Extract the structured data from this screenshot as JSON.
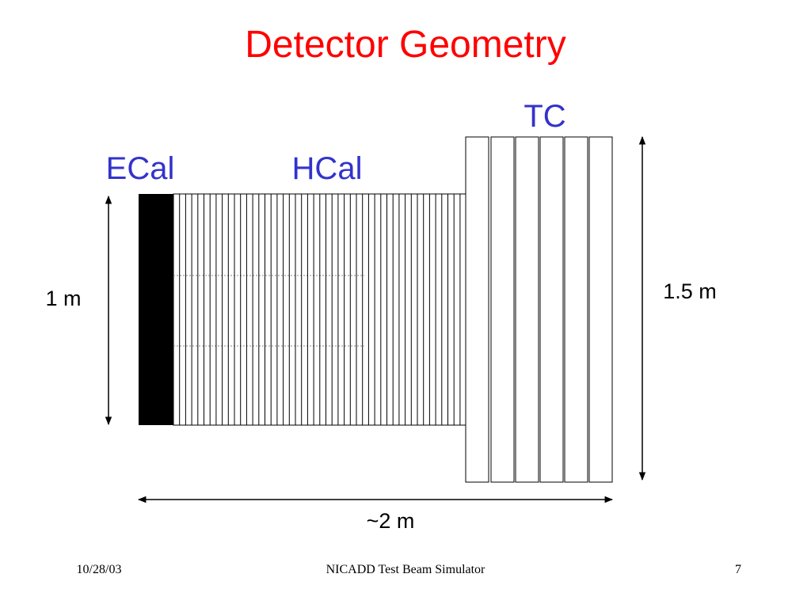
{
  "title": "Detector Geometry",
  "labels": {
    "ecal": "ECal",
    "hcal": "HCal",
    "tc": "TC"
  },
  "dimensions": {
    "height_small": "1 m",
    "height_large": "1.5 m",
    "length": "~2 m"
  },
  "footer": {
    "date": "10/28/03",
    "center": "NICADD Test Beam Simulator",
    "page": "7"
  }
}
